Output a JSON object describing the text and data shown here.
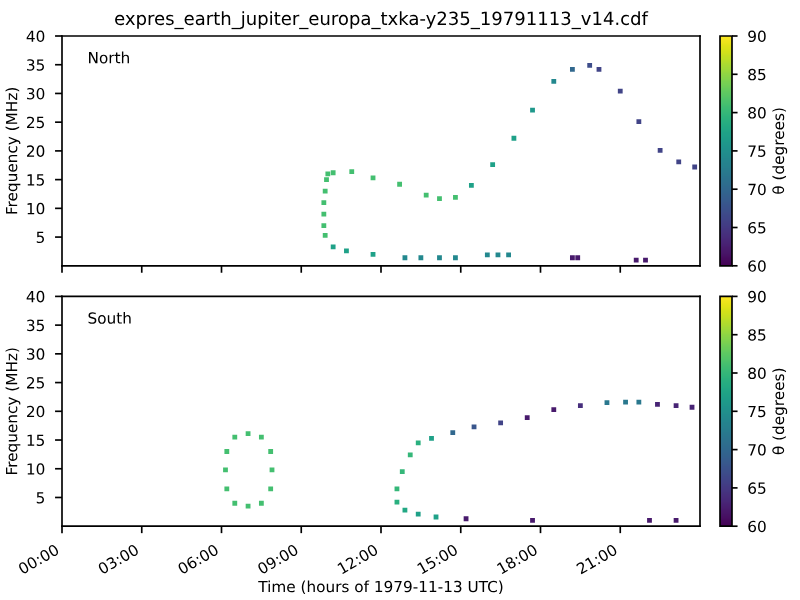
{
  "chart_data": [
    {
      "type": "scatter",
      "title": "expres_earth_jupiter_europa_txka-y235_19791113_v14.cdf",
      "annotations": [
        "North"
      ],
      "ylabel": "Frequency (MHz)",
      "clabel": "θ (degrees)",
      "clim": [
        60,
        90
      ],
      "cticks": [
        60,
        65,
        70,
        75,
        80,
        85,
        90
      ],
      "marker": "square",
      "tick_labels": "y",
      "x": [
        9.95,
        9.9,
        9.85,
        9.85,
        9.85,
        9.9,
        10.0,
        10.2,
        10.9,
        11.7,
        12.7,
        13.7,
        14.2,
        14.8,
        15.4,
        16.2,
        17.0,
        17.7,
        18.5,
        19.2,
        19.85,
        20.2,
        21.0,
        21.7,
        22.5,
        23.2,
        23.8,
        10.2,
        10.7,
        11.7,
        12.9,
        13.5,
        14.2,
        14.8,
        16.0,
        16.4,
        16.8,
        19.2,
        19.4,
        21.6,
        21.95
      ],
      "values": [
        15,
        13,
        11,
        9,
        7,
        5.3,
        16.0,
        16.2,
        16.4,
        15.3,
        14.2,
        12.3,
        11.7,
        11.9,
        14.0,
        17.6,
        22.2,
        27.1,
        32.1,
        34.2,
        34.9,
        34.2,
        30.4,
        25.1,
        20.1,
        18.1,
        17.2,
        3.3,
        2.6,
        2.0,
        1.4,
        1.4,
        1.4,
        1.4,
        1.9,
        1.9,
        1.9,
        1.4,
        1.4,
        1.0,
        1.0
      ],
      "cvalues": [
        81,
        81,
        81,
        81,
        81,
        81,
        81,
        81,
        81,
        81,
        81,
        81,
        81,
        81,
        77,
        77,
        77,
        76,
        74,
        70,
        67,
        66,
        66,
        66,
        66,
        66,
        66,
        77,
        77,
        77,
        74,
        74,
        74,
        74,
        74,
        74,
        74,
        62,
        62,
        62,
        62
      ],
      "xlim": [
        0,
        24
      ],
      "xticks": [
        {
          "value": 0,
          "label": null
        },
        {
          "value": 3,
          "label": null
        },
        {
          "value": 6,
          "label": null
        },
        {
          "value": 9,
          "label": null
        },
        {
          "value": 12,
          "label": null
        },
        {
          "value": 15,
          "label": null
        },
        {
          "value": 18,
          "label": null
        },
        {
          "value": 21,
          "label": null
        }
      ],
      "ylim": [
        0,
        40
      ],
      "yticks": [
        5,
        10,
        15,
        20,
        25,
        30,
        35,
        40
      ]
    },
    {
      "type": "scatter",
      "annotations": [
        "South"
      ],
      "xlabel": "Time (hours of 1979-11-13 UTC)",
      "ylabel": "Frequency (MHz)",
      "clabel": "θ (degrees)",
      "clim": [
        60,
        90
      ],
      "cticks": [
        60,
        65,
        70,
        75,
        80,
        85,
        90
      ],
      "marker": "square",
      "x": [
        7.0,
        7.5,
        7.85,
        7.9,
        7.85,
        7.5,
        7.0,
        6.5,
        6.2,
        6.15,
        6.2,
        6.5,
        14.07,
        13.4,
        12.9,
        12.6,
        12.6,
        12.8,
        13.1,
        13.4,
        13.9,
        14.7,
        15.5,
        16.5,
        17.5,
        18.5,
        19.5,
        20.5,
        21.2,
        21.7,
        22.4,
        23.1,
        23.7,
        15.2,
        17.7,
        22.1,
        23.1
      ],
      "values": [
        16.1,
        15.5,
        13,
        9.8,
        6.5,
        4,
        3.5,
        4,
        6.5,
        9.8,
        13,
        15.5,
        1.6,
        2.1,
        2.8,
        4.2,
        6.5,
        9.5,
        12.4,
        14.5,
        15.3,
        16.3,
        17.3,
        18.0,
        18.9,
        20.3,
        21.0,
        21.5,
        21.6,
        21.6,
        21.2,
        21.0,
        20.7,
        1.3,
        1.0,
        1.0,
        1.0
      ],
      "cvalues": [
        81,
        81,
        81,
        81,
        81,
        81,
        81,
        81,
        81,
        81,
        81,
        81,
        77,
        77,
        78,
        79,
        80,
        80,
        80,
        79,
        77,
        70,
        68,
        66,
        62,
        62,
        64,
        72,
        72,
        72,
        63,
        63,
        63,
        62,
        62,
        62,
        62
      ],
      "xlim": [
        0,
        24
      ],
      "xticks": [
        {
          "value": 0,
          "label": "00:00"
        },
        {
          "value": 3,
          "label": "03:00"
        },
        {
          "value": 6,
          "label": "06:00"
        },
        {
          "value": 9,
          "label": "09:00"
        },
        {
          "value": 12,
          "label": "12:00"
        },
        {
          "value": 15,
          "label": "15:00"
        },
        {
          "value": 18,
          "label": "18:00"
        },
        {
          "value": 21,
          "label": "21:00"
        }
      ],
      "ylim": [
        0,
        40
      ],
      "yticks": [
        5,
        10,
        15,
        20,
        25,
        30,
        35,
        40
      ]
    }
  ]
}
